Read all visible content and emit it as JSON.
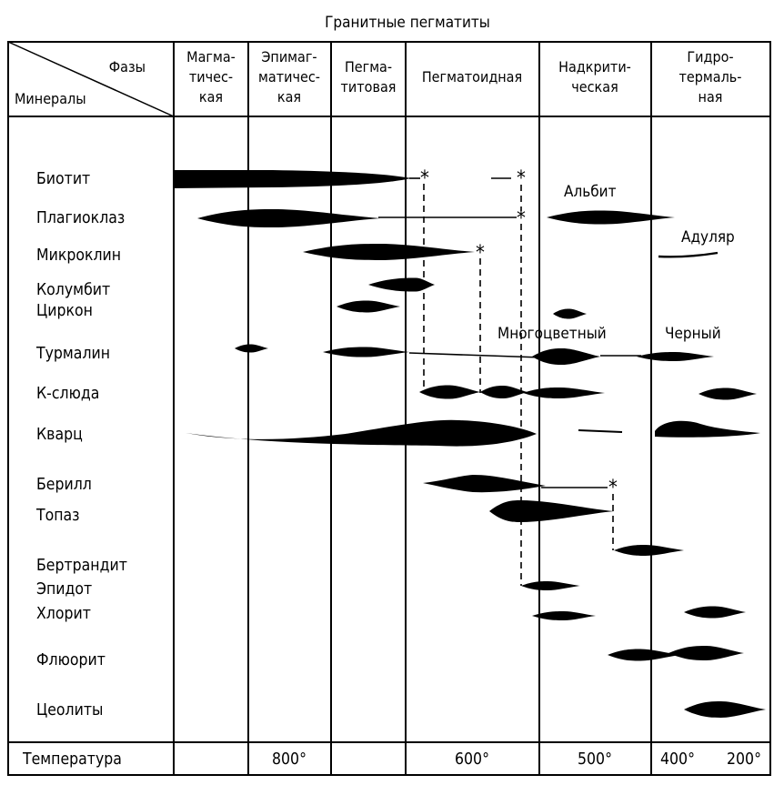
{
  "title": "Гранитные пегматиты",
  "corner": {
    "phases": "Фазы",
    "minerals": "Минералы"
  },
  "phases": [
    {
      "lines": [
        "Магма-",
        "тичес-",
        "кая"
      ]
    },
    {
      "lines": [
        "Эпимаг-",
        "матичес-",
        "кая"
      ]
    },
    {
      "lines": [
        "Пегма-",
        "титовая"
      ]
    },
    {
      "lines": [
        "Пегматоидная"
      ]
    },
    {
      "lines": [
        "Надкрити-",
        "ческая"
      ]
    },
    {
      "lines": [
        "Гидро-",
        "термаль-",
        "ная"
      ]
    }
  ],
  "minerals": [
    "Биотит",
    "Плагиоклаз",
    "Микроклин",
    "Колумбит",
    "Циркон",
    "Турмалин",
    "К-слюда",
    "Кварц",
    "Берилл",
    "Топаз",
    "Бертрандит",
    "Эпидот",
    "Хлорит",
    "Флюорит",
    "Цеолиты"
  ],
  "variety_labels": [
    "Альбит",
    "Адуляр",
    "Многоцветный",
    "Черный"
  ],
  "temperature": {
    "label": "Температура",
    "ticks": [
      "800°",
      "600°",
      "500°",
      "400°",
      "200°"
    ]
  }
}
